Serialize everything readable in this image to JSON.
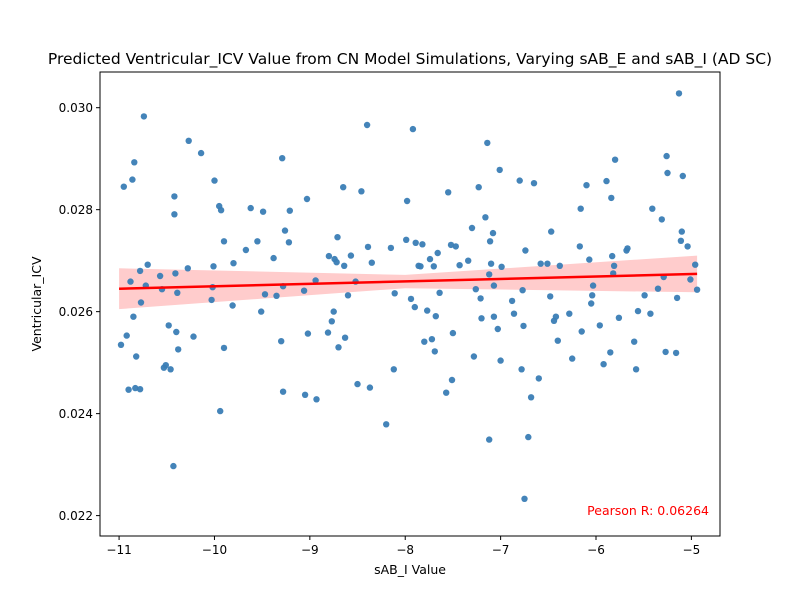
{
  "chart_data": {
    "type": "scatter",
    "title": "Predicted Ventricular_ICV Value from CN Model Simulations, Varying sAB_E and sAB_I (AD SC)",
    "xlabel": "sAB_I Value",
    "ylabel": "Ventricular_ICV",
    "xlim": [
      -11.2,
      -4.7
    ],
    "ylim": [
      0.0216,
      0.0307
    ],
    "xticks": [
      -11,
      -10,
      -9,
      -8,
      -7,
      -6,
      -5
    ],
    "xtick_labels": [
      "−11",
      "−10",
      "−9",
      "−8",
      "−7",
      "−6",
      "−5"
    ],
    "yticks": [
      0.022,
      0.024,
      0.026,
      0.028,
      0.03
    ],
    "ytick_labels": [
      "0.022",
      "0.024",
      "0.026",
      "0.028",
      "0.030"
    ],
    "grid": false,
    "point_color": "#3a7db5",
    "fit_color": "#ff0000",
    "ci_color": "#ffcccc",
    "annotation_color": "#ff0000",
    "regression": {
      "x": [
        -11,
        -4.94
      ],
      "y": [
        0.02645,
        0.02674
      ],
      "ci_lower": [
        0.02605,
        0.02638
      ],
      "ci_mid_lower": 0.02646,
      "ci_mid_upper": 0.02672,
      "ci_mid_x": -8.0,
      "ci_upper": [
        0.02685,
        0.0271
      ]
    },
    "annotation": "Pearson R: 0.06264",
    "points": [
      [
        -10.98,
        0.02535
      ],
      [
        -10.95,
        0.02845
      ],
      [
        -10.92,
        0.02553
      ],
      [
        -10.9,
        0.02447
      ],
      [
        -10.88,
        0.02659
      ],
      [
        -10.86,
        0.02859
      ],
      [
        -10.85,
        0.0259
      ],
      [
        -10.84,
        0.02893
      ],
      [
        -10.83,
        0.0245
      ],
      [
        -10.82,
        0.02512
      ],
      [
        -10.78,
        0.02448
      ],
      [
        -10.78,
        0.0268
      ],
      [
        -10.77,
        0.02618
      ],
      [
        -10.74,
        0.02983
      ],
      [
        -10.72,
        0.02651
      ],
      [
        -10.7,
        0.02692
      ],
      [
        -10.57,
        0.0267
      ],
      [
        -10.55,
        0.02644
      ],
      [
        -10.53,
        0.0249
      ],
      [
        -10.51,
        0.02495
      ],
      [
        -10.48,
        0.02573
      ],
      [
        -10.46,
        0.02487
      ],
      [
        -10.43,
        0.02297
      ],
      [
        -10.42,
        0.02826
      ],
      [
        -10.42,
        0.02791
      ],
      [
        -10.41,
        0.02675
      ],
      [
        -10.4,
        0.0256
      ],
      [
        -10.39,
        0.02637
      ],
      [
        -10.38,
        0.02526
      ],
      [
        -10.28,
        0.02685
      ],
      [
        -10.27,
        0.02935
      ],
      [
        -10.22,
        0.02551
      ],
      [
        -10.14,
        0.02911
      ],
      [
        -10.03,
        0.02623
      ],
      [
        -10.02,
        0.02648
      ],
      [
        -10.01,
        0.02689
      ],
      [
        -10.0,
        0.02857
      ],
      [
        -9.95,
        0.02807
      ],
      [
        -9.94,
        0.02405
      ],
      [
        -9.93,
        0.02799
      ],
      [
        -9.9,
        0.02529
      ],
      [
        -9.9,
        0.02738
      ],
      [
        -9.81,
        0.02612
      ],
      [
        -9.8,
        0.02695
      ],
      [
        -9.67,
        0.02721
      ],
      [
        -9.62,
        0.02803
      ],
      [
        -9.55,
        0.02738
      ],
      [
        -9.51,
        0.026
      ],
      [
        -9.49,
        0.02796
      ],
      [
        -9.47,
        0.02634
      ],
      [
        -9.38,
        0.02705
      ],
      [
        -9.35,
        0.02631
      ],
      [
        -9.3,
        0.02542
      ],
      [
        -9.29,
        0.02901
      ],
      [
        -9.28,
        0.02443
      ],
      [
        -9.28,
        0.0265
      ],
      [
        -9.26,
        0.02759
      ],
      [
        -9.22,
        0.02736
      ],
      [
        -9.21,
        0.02798
      ],
      [
        -9.06,
        0.02641
      ],
      [
        -9.05,
        0.02437
      ],
      [
        -9.03,
        0.02821
      ],
      [
        -9.02,
        0.02557
      ],
      [
        -8.94,
        0.02661
      ],
      [
        -8.93,
        0.02428
      ],
      [
        -8.81,
        0.02559
      ],
      [
        -8.8,
        0.02709
      ],
      [
        -8.77,
        0.02581
      ],
      [
        -8.75,
        0.026
      ],
      [
        -8.74,
        0.02703
      ],
      [
        -8.72,
        0.02697
      ],
      [
        -8.71,
        0.02746
      ],
      [
        -8.7,
        0.0253
      ],
      [
        -8.65,
        0.02844
      ],
      [
        -8.64,
        0.0269
      ],
      [
        -8.63,
        0.02549
      ],
      [
        -8.6,
        0.02632
      ],
      [
        -8.57,
        0.0271
      ],
      [
        -8.52,
        0.02659
      ],
      [
        -8.5,
        0.02458
      ],
      [
        -8.46,
        0.02836
      ],
      [
        -8.4,
        0.02966
      ],
      [
        -8.39,
        0.02727
      ],
      [
        -8.37,
        0.02451
      ],
      [
        -8.35,
        0.02696
      ],
      [
        -8.2,
        0.02379
      ],
      [
        -8.15,
        0.02725
      ],
      [
        -8.12,
        0.02487
      ],
      [
        -8.11,
        0.02636
      ],
      [
        -7.99,
        0.02741
      ],
      [
        -7.98,
        0.02817
      ],
      [
        -7.94,
        0.02625
      ],
      [
        -7.92,
        0.02958
      ],
      [
        -7.9,
        0.02609
      ],
      [
        -7.89,
        0.02735
      ],
      [
        -7.86,
        0.0269
      ],
      [
        -7.84,
        0.02689
      ],
      [
        -7.82,
        0.02732
      ],
      [
        -7.8,
        0.02541
      ],
      [
        -7.77,
        0.02602
      ],
      [
        -7.74,
        0.02703
      ],
      [
        -7.72,
        0.02546
      ],
      [
        -7.7,
        0.02689
      ],
      [
        -7.69,
        0.02522
      ],
      [
        -7.68,
        0.02591
      ],
      [
        -7.66,
        0.02715
      ],
      [
        -7.64,
        0.02637
      ],
      [
        -7.57,
        0.02441
      ],
      [
        -7.55,
        0.02834
      ],
      [
        -7.52,
        0.02731
      ],
      [
        -7.51,
        0.02466
      ],
      [
        -7.5,
        0.02558
      ],
      [
        -7.47,
        0.02728
      ],
      [
        -7.43,
        0.02691
      ],
      [
        -7.34,
        0.027
      ],
      [
        -7.3,
        0.02764
      ],
      [
        -7.28,
        0.02512
      ],
      [
        -7.26,
        0.02644
      ],
      [
        -7.23,
        0.02844
      ],
      [
        -7.21,
        0.02626
      ],
      [
        -7.2,
        0.02587
      ],
      [
        -7.16,
        0.02785
      ],
      [
        -7.14,
        0.02931
      ],
      [
        -7.12,
        0.02349
      ],
      [
        -7.12,
        0.02673
      ],
      [
        -7.11,
        0.02738
      ],
      [
        -7.1,
        0.02694
      ],
      [
        -7.08,
        0.02754
      ],
      [
        -7.07,
        0.0259
      ],
      [
        -7.07,
        0.02651
      ],
      [
        -7.03,
        0.02566
      ],
      [
        -7.01,
        0.02878
      ],
      [
        -7.0,
        0.02504
      ],
      [
        -6.99,
        0.02688
      ],
      [
        -6.88,
        0.02621
      ],
      [
        -6.86,
        0.02596
      ],
      [
        -6.8,
        0.02857
      ],
      [
        -6.78,
        0.02487
      ],
      [
        -6.77,
        0.02642
      ],
      [
        -6.76,
        0.02572
      ],
      [
        -6.75,
        0.02233
      ],
      [
        -6.74,
        0.0272
      ],
      [
        -6.71,
        0.02354
      ],
      [
        -6.68,
        0.02432
      ],
      [
        -6.65,
        0.02852
      ],
      [
        -6.6,
        0.02469
      ],
      [
        -6.58,
        0.02694
      ],
      [
        -6.51,
        0.02694
      ],
      [
        -6.48,
        0.0263
      ],
      [
        -6.47,
        0.02757
      ],
      [
        -6.44,
        0.02582
      ],
      [
        -6.42,
        0.0259
      ],
      [
        -6.4,
        0.02543
      ],
      [
        -6.38,
        0.0269
      ],
      [
        -6.28,
        0.02596
      ],
      [
        -6.25,
        0.02508
      ],
      [
        -6.17,
        0.02728
      ],
      [
        -6.16,
        0.02802
      ],
      [
        -6.15,
        0.02561
      ],
      [
        -6.1,
        0.02848
      ],
      [
        -6.07,
        0.02702
      ],
      [
        -6.05,
        0.02616
      ],
      [
        -6.04,
        0.02632
      ],
      [
        -6.03,
        0.02651
      ],
      [
        -5.96,
        0.02573
      ],
      [
        -5.92,
        0.02497
      ],
      [
        -5.89,
        0.02856
      ],
      [
        -5.85,
        0.0252
      ],
      [
        -5.84,
        0.02823
      ],
      [
        -5.83,
        0.02709
      ],
      [
        -5.82,
        0.02675
      ],
      [
        -5.81,
        0.0269
      ],
      [
        -5.8,
        0.02898
      ],
      [
        -5.76,
        0.02588
      ],
      [
        -5.68,
        0.0272
      ],
      [
        -5.67,
        0.02724
      ],
      [
        -5.6,
        0.02541
      ],
      [
        -5.58,
        0.02487
      ],
      [
        -5.56,
        0.02601
      ],
      [
        -5.49,
        0.02632
      ],
      [
        -5.43,
        0.02596
      ],
      [
        -5.41,
        0.02802
      ],
      [
        -5.35,
        0.02645
      ],
      [
        -5.31,
        0.02781
      ],
      [
        -5.29,
        0.02668
      ],
      [
        -5.27,
        0.02521
      ],
      [
        -5.26,
        0.02905
      ],
      [
        -5.25,
        0.02872
      ],
      [
        -5.16,
        0.02519
      ],
      [
        -5.15,
        0.02627
      ],
      [
        -5.13,
        0.03028
      ],
      [
        -5.11,
        0.02739
      ],
      [
        -5.1,
        0.02757
      ],
      [
        -5.09,
        0.02866
      ],
      [
        -5.04,
        0.02728
      ],
      [
        -5.01,
        0.02663
      ],
      [
        -4.96,
        0.02692
      ],
      [
        -4.94,
        0.02643
      ]
    ]
  }
}
